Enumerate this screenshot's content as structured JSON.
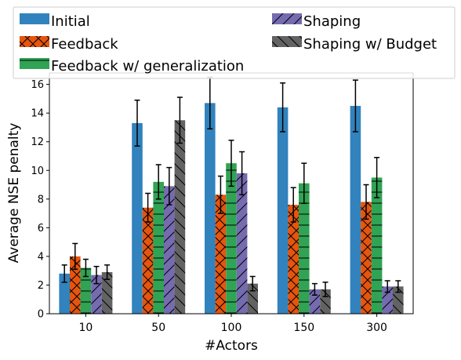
{
  "chart_data": {
    "type": "bar",
    "categories": [
      "10",
      "50",
      "100",
      "150",
      "300"
    ],
    "xlabel": "#Actors",
    "ylabel": "Average NSE penalty",
    "ylim": [
      0,
      16.8
    ],
    "yticks": [
      0,
      2,
      4,
      6,
      8,
      10,
      12,
      14,
      16
    ],
    "grid": false,
    "legend_placement": "top",
    "series": [
      {
        "name": "Initial",
        "color": "#3182bd",
        "hatch": "none",
        "values": [
          2.8,
          13.3,
          14.7,
          14.4,
          14.5
        ],
        "errors": [
          0.6,
          1.6,
          1.8,
          1.7,
          1.8
        ]
      },
      {
        "name": "Feedback",
        "color": "#e6550d",
        "hatch": "cross",
        "values": [
          4.0,
          7.4,
          8.3,
          7.6,
          7.8
        ],
        "errors": [
          0.9,
          1.0,
          1.3,
          1.2,
          1.2
        ]
      },
      {
        "name": "Feedback w/ generalization",
        "color": "#31a354",
        "hatch": "horizontal",
        "values": [
          3.2,
          9.2,
          10.5,
          9.1,
          9.5
        ],
        "errors": [
          0.6,
          1.2,
          1.6,
          1.4,
          1.4
        ]
      },
      {
        "name": "Shaping",
        "color": "#756bb1",
        "hatch": "forward",
        "values": [
          2.7,
          8.9,
          9.8,
          1.7,
          1.9
        ],
        "errors": [
          0.6,
          1.3,
          1.5,
          0.4,
          0.4
        ]
      },
      {
        "name": "Shaping w/ Budget",
        "color": "#636363",
        "hatch": "backward",
        "values": [
          2.9,
          13.5,
          2.1,
          1.7,
          1.9
        ],
        "errors": [
          0.5,
          1.6,
          0.5,
          0.5,
          0.4
        ]
      }
    ]
  }
}
